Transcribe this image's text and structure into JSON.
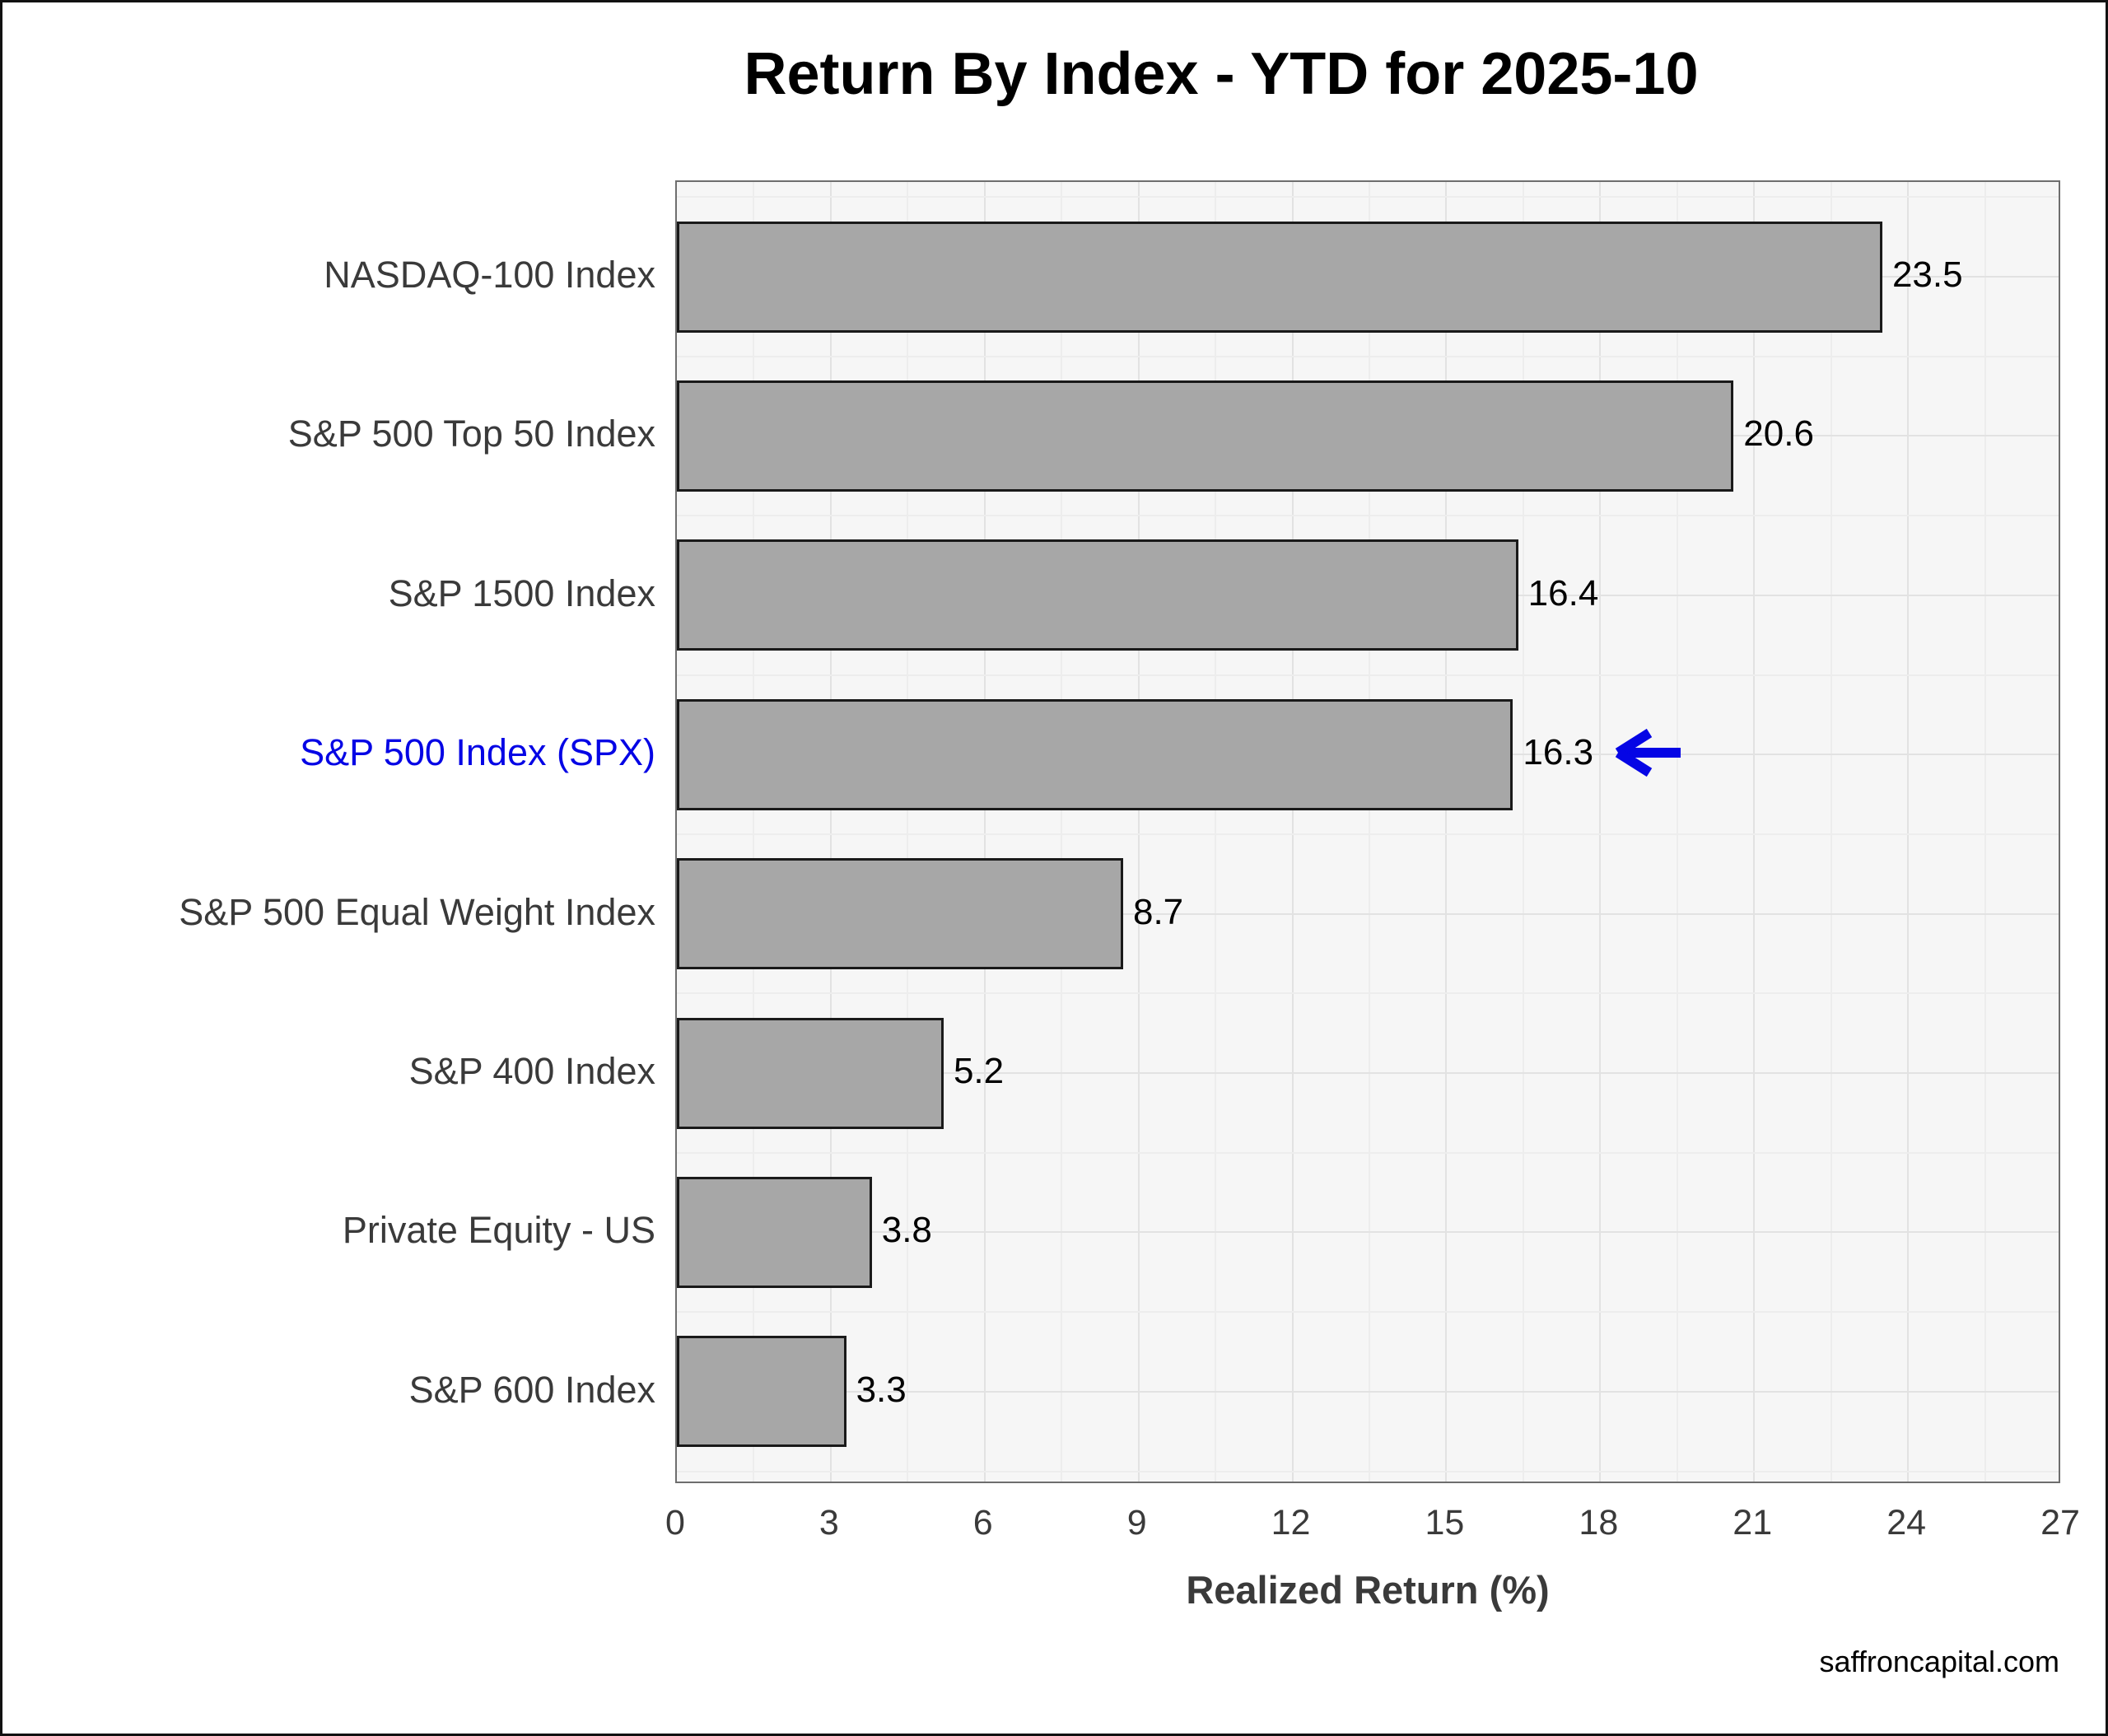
{
  "page": {
    "title": "Return By Index - YTD for 2025-10",
    "watermark": "saffroncapital.com"
  },
  "chart_data": {
    "type": "bar",
    "orientation": "horizontal",
    "title": "Return By Index - YTD for 2025-10",
    "categories": [
      "NASDAQ-100 Index",
      "S&P 500 Top 50 Index",
      "S&P 1500 Index",
      "S&P 500 Index (SPX)",
      "S&P 500 Equal Weight Index",
      "S&P 400 Index",
      "Private Equity - US",
      "S&P 600 Index"
    ],
    "values": [
      23.5,
      20.6,
      16.4,
      16.3,
      8.7,
      5.2,
      3.8,
      3.3
    ],
    "value_labels": [
      "23.5",
      "20.6",
      "16.4",
      "16.3",
      "8.7",
      "5.2",
      "3.8",
      "3.3"
    ],
    "xlabel": "Realized Return (%)",
    "ylabel": "",
    "xlim": [
      0,
      27
    ],
    "xticks": [
      0,
      3,
      6,
      9,
      12,
      15,
      18,
      21,
      24,
      27
    ],
    "grid": true,
    "legend": "none",
    "annotation": {
      "type": "arrow-left",
      "target": "S&P 500 Index (SPX)",
      "color": "#0505e5"
    },
    "highlighted_category": "S&P 500 Index (SPX)",
    "colors": {
      "bar_fill": "#a7a7a7",
      "bar_border": "#1a1a1a",
      "panel_background": "#f6f6f6",
      "panel_border": "#6e6e6e",
      "grid_major": "#e2e2e2",
      "grid_minor": "#ededed",
      "category_text": "#3a3a3a",
      "highlight_text": "#0505e5",
      "value_text": "#000000",
      "title_text": "#000000"
    }
  }
}
